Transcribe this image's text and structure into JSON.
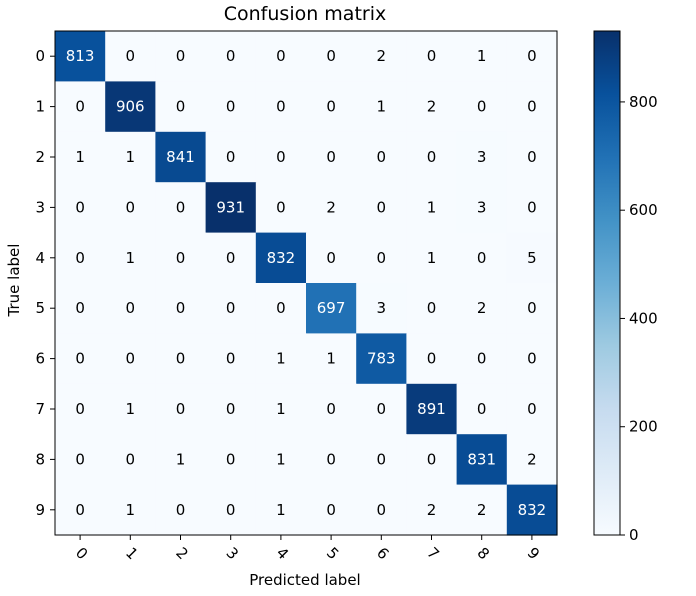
{
  "chart_data": {
    "type": "heatmap",
    "title": "Confusion matrix",
    "xlabel": "Predicted label",
    "ylabel": "True label",
    "x_categories": [
      "0",
      "1",
      "2",
      "3",
      "4",
      "5",
      "6",
      "7",
      "8",
      "9"
    ],
    "y_categories": [
      "0",
      "1",
      "2",
      "3",
      "4",
      "5",
      "6",
      "7",
      "8",
      "9"
    ],
    "matrix": [
      [
        813,
        0,
        0,
        0,
        0,
        0,
        2,
        0,
        1,
        0
      ],
      [
        0,
        906,
        0,
        0,
        0,
        0,
        1,
        2,
        0,
        0
      ],
      [
        1,
        1,
        841,
        0,
        0,
        0,
        0,
        0,
        3,
        0
      ],
      [
        0,
        0,
        0,
        931,
        0,
        2,
        0,
        1,
        3,
        0
      ],
      [
        0,
        1,
        0,
        0,
        832,
        0,
        0,
        1,
        0,
        5
      ],
      [
        0,
        0,
        0,
        0,
        0,
        697,
        3,
        0,
        2,
        0
      ],
      [
        0,
        0,
        0,
        0,
        1,
        1,
        783,
        0,
        0,
        0
      ],
      [
        0,
        1,
        0,
        0,
        1,
        0,
        0,
        891,
        0,
        0
      ],
      [
        0,
        0,
        1,
        0,
        1,
        0,
        0,
        0,
        831,
        2
      ],
      [
        0,
        1,
        0,
        0,
        1,
        0,
        0,
        2,
        2,
        832
      ]
    ],
    "colormap": "Blues",
    "colorbar": {
      "range": [
        0,
        931
      ],
      "ticks": [
        0,
        200,
        400,
        600,
        800
      ]
    },
    "x_tick_rotation": 45,
    "grid": false
  }
}
